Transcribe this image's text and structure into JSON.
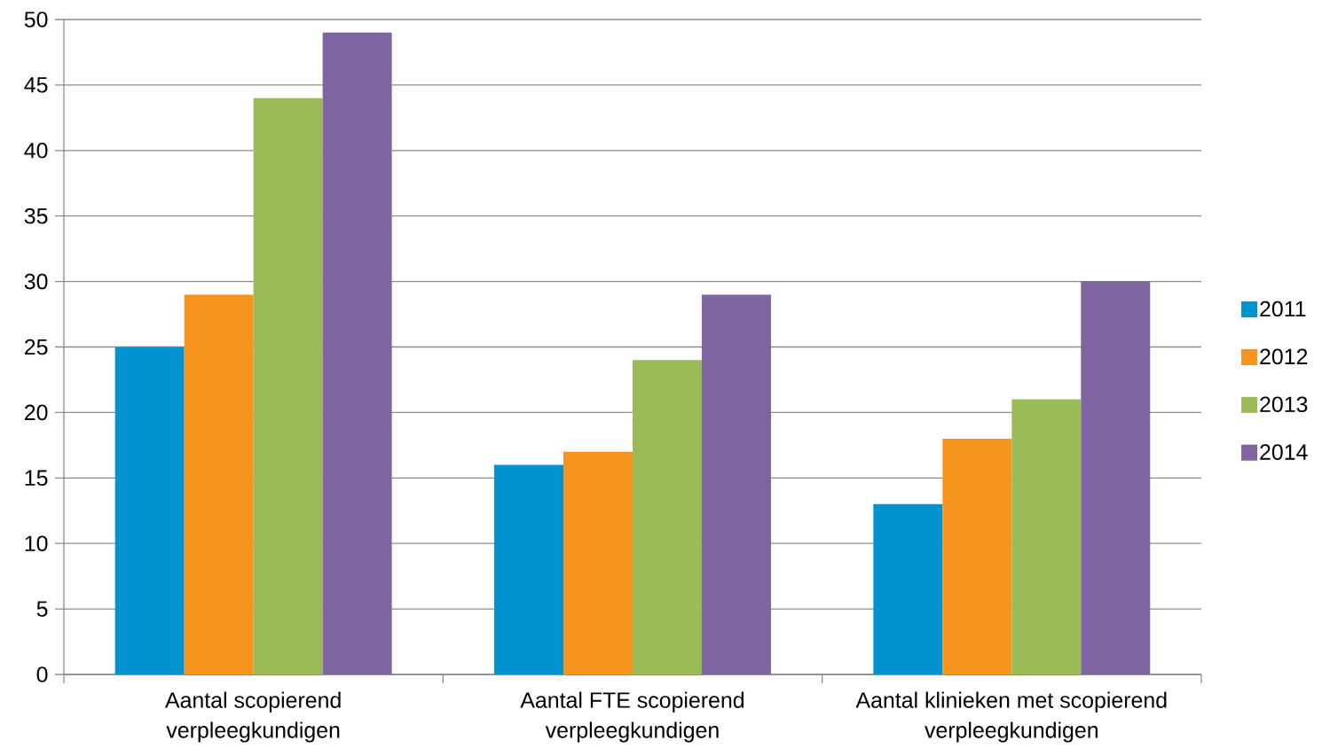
{
  "chart_data": {
    "type": "bar",
    "categories": [
      "Aantal scopierend verpleegkundigen",
      "Aantal FTE scopierend verpleegkundigen",
      "Aantal klinieken met scopierend verpleegkundigen"
    ],
    "series": [
      {
        "name": "2011",
        "color": "#0093d0",
        "values": [
          25,
          16,
          13
        ]
      },
      {
        "name": "2012",
        "color": "#f7941e",
        "values": [
          29,
          17,
          18
        ]
      },
      {
        "name": "2013",
        "color": "#9bbb59",
        "values": [
          44,
          24,
          21
        ]
      },
      {
        "name": "2014",
        "color": "#8064a2",
        "values": [
          49,
          29,
          30
        ]
      }
    ],
    "ylim": [
      0,
      50
    ],
    "yticks": [
      0,
      5,
      10,
      15,
      20,
      25,
      30,
      35,
      40,
      45,
      50
    ],
    "grid": "y",
    "legend": "right"
  }
}
